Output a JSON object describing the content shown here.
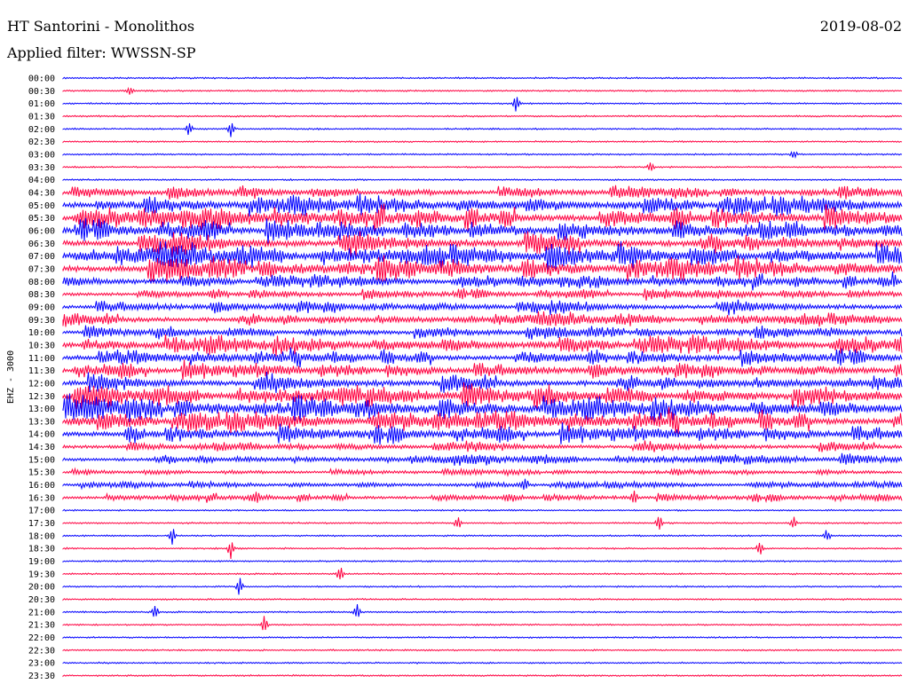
{
  "header": {
    "station": "HT Santorini - Monolithos",
    "filter": "Applied filter: WWSSN-SP",
    "date": "2019-08-02"
  },
  "chart_data": {
    "type": "line",
    "ylabel": "EHZ - 3000",
    "colors": [
      "#0000ff",
      "#ff0040"
    ],
    "tick_labels": [
      "00:00",
      "00:30",
      "01:00",
      "01:30",
      "02:00",
      "02:30",
      "03:00",
      "03:30",
      "04:00",
      "04:30",
      "05:00",
      "05:30",
      "06:00",
      "06:30",
      "07:00",
      "07:30",
      "08:00",
      "08:30",
      "09:00",
      "09:30",
      "10:00",
      "10:30",
      "11:00",
      "11:30",
      "12:00",
      "12:30",
      "13:00",
      "13:30",
      "14:00",
      "14:30",
      "15:00",
      "15:30",
      "16:00",
      "16:30",
      "17:00",
      "17:30",
      "18:00",
      "18:30",
      "19:00",
      "19:30",
      "20:00",
      "20:30",
      "21:00",
      "21:30",
      "22:00",
      "22:30",
      "23:00",
      "23:30"
    ],
    "activity": [
      0.05,
      0.05,
      0.05,
      0.05,
      0.06,
      0.05,
      0.06,
      0.05,
      0.1,
      0.45,
      0.85,
      1.0,
      0.9,
      0.95,
      1.0,
      0.95,
      0.55,
      0.4,
      0.55,
      0.55,
      0.45,
      0.8,
      0.65,
      0.7,
      0.75,
      0.9,
      1.0,
      0.9,
      0.75,
      0.4,
      0.4,
      0.2,
      0.25,
      0.3,
      0.12,
      0.12,
      0.08,
      0.08,
      0.06,
      0.08,
      0.08,
      0.06,
      0.08,
      0.08,
      0.05,
      0.05,
      0.05,
      0.05
    ],
    "events": [
      {
        "row": 1,
        "pos": 0.08,
        "amp": 0.7
      },
      {
        "row": 2,
        "pos": 0.54,
        "amp": 1.2
      },
      {
        "row": 4,
        "pos": 0.15,
        "amp": 1.0
      },
      {
        "row": 4,
        "pos": 0.2,
        "amp": 1.0
      },
      {
        "row": 6,
        "pos": 0.87,
        "amp": 0.6
      },
      {
        "row": 7,
        "pos": 0.7,
        "amp": 0.6
      },
      {
        "row": 16,
        "pos": 0.99,
        "amp": 0.8
      },
      {
        "row": 32,
        "pos": 0.55,
        "amp": 0.9
      },
      {
        "row": 33,
        "pos": 0.23,
        "amp": 1.0
      },
      {
        "row": 33,
        "pos": 0.68,
        "amp": 1.0
      },
      {
        "row": 35,
        "pos": 0.47,
        "amp": 0.9
      },
      {
        "row": 35,
        "pos": 0.71,
        "amp": 1.0
      },
      {
        "row": 35,
        "pos": 0.87,
        "amp": 0.9
      },
      {
        "row": 36,
        "pos": 0.13,
        "amp": 1.3
      },
      {
        "row": 36,
        "pos": 0.91,
        "amp": 0.9
      },
      {
        "row": 37,
        "pos": 0.2,
        "amp": 1.3
      },
      {
        "row": 37,
        "pos": 0.83,
        "amp": 1.2
      },
      {
        "row": 39,
        "pos": 0.33,
        "amp": 1.0
      },
      {
        "row": 40,
        "pos": 0.21,
        "amp": 1.3
      },
      {
        "row": 42,
        "pos": 0.11,
        "amp": 0.9
      },
      {
        "row": 42,
        "pos": 0.35,
        "amp": 1.0
      },
      {
        "row": 43,
        "pos": 0.24,
        "amp": 1.2
      }
    ]
  }
}
